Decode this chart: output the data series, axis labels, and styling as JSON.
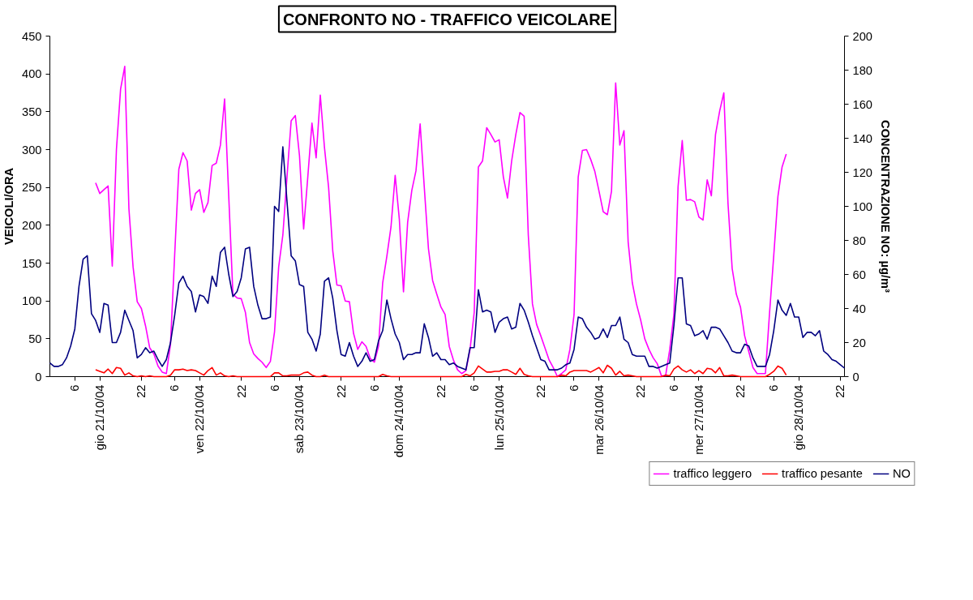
{
  "chart_data": {
    "type": "line",
    "title": "CONFRONTO NO - TRAFFICO VEICOLARE",
    "ylabel": "VEICOLI/ORA",
    "y2label": "CONCENTRAZIONE NO: µg/m³",
    "categories": [
      null,
      null,
      null,
      null,
      null,
      null,
      "6",
      null,
      null,
      null,
      null,
      null,
      "gio 21/10/04",
      null,
      null,
      null,
      null,
      null,
      null,
      null,
      null,
      null,
      "22",
      null,
      null,
      null,
      null,
      null,
      null,
      null,
      "6",
      null,
      null,
      null,
      null,
      null,
      "ven 22/10/04",
      null,
      null,
      null,
      null,
      null,
      null,
      null,
      null,
      null,
      "22",
      null,
      null,
      null,
      null,
      null,
      null,
      null,
      "6",
      null,
      null,
      null,
      null,
      null,
      "sab 23/10/04",
      null,
      null,
      null,
      null,
      null,
      null,
      null,
      null,
      null,
      "22",
      null,
      null,
      null,
      null,
      null,
      null,
      null,
      "6",
      null,
      null,
      null,
      null,
      null,
      "dom 24/10/04",
      null,
      null,
      null,
      null,
      null,
      null,
      null,
      null,
      null,
      "22",
      null,
      null,
      null,
      null,
      null,
      null,
      null,
      "6",
      null,
      null,
      null,
      null,
      null,
      "lun 25/10/04",
      null,
      null,
      null,
      null,
      null,
      null,
      null,
      null,
      null,
      "22",
      null,
      null,
      null,
      null,
      null,
      null,
      null,
      "6",
      null,
      null,
      null,
      null,
      null,
      "mar 26/10/04",
      null,
      null,
      null,
      null,
      null,
      null,
      null,
      null,
      null,
      "22",
      null,
      null,
      null,
      null,
      null,
      null,
      null,
      "6",
      null,
      null,
      null,
      null,
      null,
      "mer 27/10/04",
      null,
      null,
      null,
      null,
      null,
      null,
      null,
      null,
      null,
      "22",
      null,
      null,
      null,
      null,
      null,
      null,
      null,
      "6",
      null,
      null,
      null,
      null,
      null,
      "gio 28/10/04",
      null,
      null,
      null,
      null,
      null,
      null,
      null,
      null,
      null,
      "22",
      null
    ],
    "ylim": [
      0,
      450
    ],
    "yticks": [
      0,
      50,
      100,
      150,
      200,
      250,
      300,
      350,
      400,
      450
    ],
    "y2lim": [
      0,
      200
    ],
    "y2ticks": [
      0,
      20,
      40,
      60,
      80,
      100,
      120,
      140,
      160,
      180,
      200
    ],
    "legend": "bottom right",
    "series": [
      {
        "name": "traffico leggero",
        "color": "#ff00ff",
        "values": [
          null,
          null,
          null,
          null,
          null,
          null,
          null,
          null,
          null,
          null,
          null,
          256,
          242,
          247,
          252,
          146,
          300,
          380,
          410,
          222,
          145,
          99,
          90,
          67,
          38,
          30,
          14,
          6,
          4,
          43,
          161,
          274,
          296,
          285,
          220,
          242,
          247,
          217,
          230,
          279,
          282,
          306,
          367,
          238,
          109,
          104,
          103,
          85,
          45,
          30,
          24,
          19,
          12,
          20,
          59,
          145,
          187,
          264,
          338,
          345,
          292,
          195,
          264,
          335,
          289,
          372,
          303,
          250,
          166,
          121,
          120,
          100,
          99,
          57,
          36,
          46,
          40,
          24,
          19,
          40,
          124,
          159,
          198,
          266,
          208,
          112,
          204,
          246,
          272,
          334,
          250,
          169,
          127,
          109,
          92,
          82,
          40,
          22,
          9,
          4,
          8,
          36,
          85,
          277,
          285,
          329,
          320,
          310,
          313,
          264,
          236,
          285,
          320,
          349,
          344,
          187,
          96,
          69,
          54,
          38,
          22,
          12,
          0,
          4,
          9,
          36,
          82,
          264,
          299,
          300,
          287,
          271,
          245,
          218,
          214,
          245,
          388,
          306,
          325,
          178,
          124,
          96,
          75,
          50,
          36,
          25,
          17,
          1,
          1,
          36,
          82,
          251,
          312,
          233,
          234,
          231,
          211,
          207,
          260,
          239,
          320,
          351,
          375,
          229,
          143,
          109,
          92,
          54,
          33,
          12,
          4,
          4,
          4,
          85,
          160,
          238,
          277,
          294,
          null,
          null,
          null,
          null,
          null,
          null,
          null,
          null,
          null,
          null,
          null,
          null,
          null,
          null
        ]
      },
      {
        "name": "traffico pesante",
        "color": "#ff0000",
        "values": [
          null,
          null,
          null,
          null,
          null,
          null,
          null,
          null,
          null,
          null,
          null,
          9,
          7,
          5,
          10,
          4,
          12,
          11,
          2,
          5,
          1,
          0,
          1,
          0,
          1,
          0,
          0,
          0,
          0,
          2,
          9,
          9,
          10,
          8,
          9,
          8,
          5,
          2,
          8,
          12,
          2,
          5,
          1,
          0,
          1,
          0,
          0,
          0,
          0,
          0,
          0,
          0,
          0,
          0,
          5,
          5,
          1,
          1,
          2,
          2,
          2,
          5,
          6,
          2,
          0,
          0,
          2,
          0,
          0,
          0,
          0,
          0,
          0,
          0,
          0,
          0,
          0,
          0,
          0,
          0,
          3,
          1,
          0,
          0,
          0,
          0,
          0,
          0,
          0,
          0,
          0,
          0,
          0,
          0,
          0,
          0,
          0,
          0,
          0,
          0,
          3,
          1,
          5,
          14,
          10,
          6,
          6,
          7,
          7,
          9,
          9,
          6,
          3,
          11,
          3,
          1,
          0,
          0,
          0,
          0,
          0,
          0,
          0,
          2,
          1,
          6,
          8,
          8,
          8,
          8,
          6,
          9,
          12,
          5,
          15,
          11,
          2,
          7,
          1,
          2,
          1,
          0,
          0,
          0,
          0,
          0,
          0,
          0,
          2,
          1,
          10,
          14,
          9,
          6,
          9,
          4,
          8,
          4,
          11,
          10,
          5,
          12,
          1,
          1,
          2,
          1,
          0,
          0,
          0,
          0,
          0,
          0,
          0,
          3,
          7,
          14,
          11,
          2,
          null,
          null,
          null,
          null,
          null,
          null,
          null,
          null,
          null,
          null,
          null,
          null,
          null,
          null
        ]
      },
      {
        "name": "NO",
        "color": "#000080",
        "axis": "y2",
        "values": [
          8,
          6,
          6,
          7,
          11,
          18,
          28,
          53,
          69,
          71,
          37,
          33,
          26,
          43,
          42,
          20,
          20,
          26,
          39,
          33,
          27,
          11,
          13,
          17,
          14,
          15,
          10,
          6,
          10,
          20,
          36,
          55,
          59,
          53,
          50,
          38,
          48,
          47,
          43,
          59,
          53,
          73,
          76,
          60,
          47,
          50,
          58,
          75,
          76,
          53,
          42,
          34,
          34,
          35,
          100,
          97,
          135,
          103,
          71,
          68,
          54,
          53,
          26,
          22,
          15,
          25,
          56,
          58,
          46,
          27,
          13,
          12,
          20,
          12,
          6,
          9,
          14,
          9,
          10,
          21,
          27,
          45,
          34,
          25,
          20,
          10,
          13,
          13,
          14,
          14,
          31,
          23,
          12,
          14,
          10,
          10,
          7,
          8,
          6,
          5,
          4,
          17,
          17,
          51,
          38,
          39,
          38,
          26,
          32,
          34,
          35,
          28,
          29,
          43,
          39,
          32,
          24,
          17,
          10,
          9,
          4,
          4,
          4,
          5,
          7,
          8,
          16,
          35,
          34,
          29,
          26,
          22,
          23,
          28,
          23,
          30,
          30,
          35,
          22,
          20,
          13,
          12,
          12,
          12,
          6,
          6,
          5,
          6,
          7,
          8,
          30,
          58,
          58,
          31,
          30,
          24,
          25,
          27,
          22,
          29,
          29,
          28,
          24,
          20,
          15,
          14,
          14,
          19,
          18,
          11,
          6,
          6,
          6,
          13,
          27,
          45,
          39,
          36,
          43,
          35,
          35,
          23,
          26,
          26,
          24,
          27,
          15,
          13,
          10,
          9,
          7,
          5
        ]
      }
    ]
  }
}
